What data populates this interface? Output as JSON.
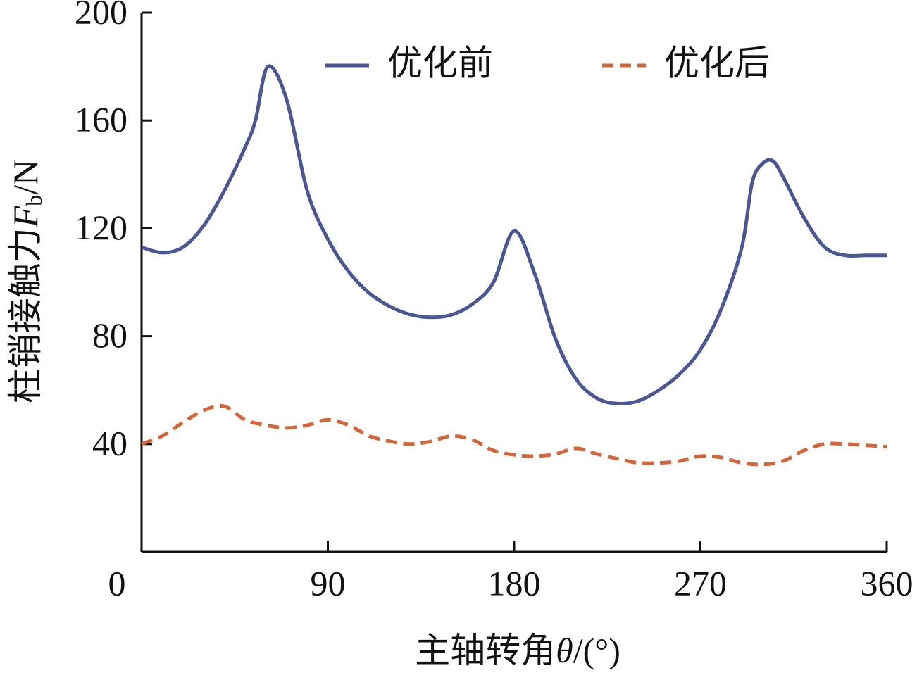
{
  "chart_data": {
    "type": "line",
    "x_label": {
      "text": "主轴转角",
      "symbol": "θ",
      "unit": "/(°)"
    },
    "y_label": {
      "text": "柱销接触力",
      "symbol": "F",
      "subscript": "b",
      "unit": "/N"
    },
    "xlim": [
      0,
      360
    ],
    "xticks": [
      0,
      90,
      180,
      270,
      360
    ],
    "ylim": [
      0,
      200
    ],
    "yticks": [
      40,
      80,
      120,
      160,
      200
    ],
    "legend": "top",
    "series": [
      {
        "name": "优化前",
        "color": "#4a5794",
        "style": "solid",
        "x": [
          0,
          10,
          20,
          30,
          40,
          50,
          55,
          61,
          70,
          80,
          90,
          100,
          110,
          120,
          130,
          140,
          150,
          160,
          170,
          180,
          190,
          200,
          210,
          220,
          230,
          240,
          250,
          260,
          270,
          280,
          290,
          295,
          300,
          305,
          310,
          320,
          330,
          340,
          350,
          360
        ],
        "values": [
          113,
          111,
          113,
          121,
          134,
          150,
          160,
          180,
          168,
          134,
          116,
          104,
          96,
          91,
          88,
          87,
          88,
          92,
          100,
          119,
          103,
          79,
          64,
          57,
          55,
          56,
          60,
          66,
          75,
          90,
          113,
          137,
          144,
          145,
          139,
          124,
          113,
          110,
          110,
          110
        ]
      },
      {
        "name": "优化后",
        "color": "#d4643a",
        "style": "dashed",
        "x": [
          0,
          10,
          20,
          30,
          40,
          50,
          60,
          70,
          80,
          90,
          100,
          110,
          120,
          130,
          140,
          150,
          160,
          170,
          180,
          190,
          200,
          210,
          220,
          230,
          240,
          250,
          260,
          270,
          280,
          290,
          300,
          310,
          320,
          330,
          340,
          350,
          360
        ],
        "values": [
          40,
          43,
          48,
          52.5,
          54,
          49,
          47,
          46,
          47,
          49,
          47,
          43,
          41,
          40,
          41,
          43,
          41.5,
          37.6,
          36,
          35.5,
          36.3,
          38.4,
          36.3,
          34.5,
          33,
          33,
          33.7,
          35.5,
          35,
          33,
          32.4,
          33.7,
          37.6,
          40,
          40,
          39.5,
          39
        ]
      }
    ]
  }
}
